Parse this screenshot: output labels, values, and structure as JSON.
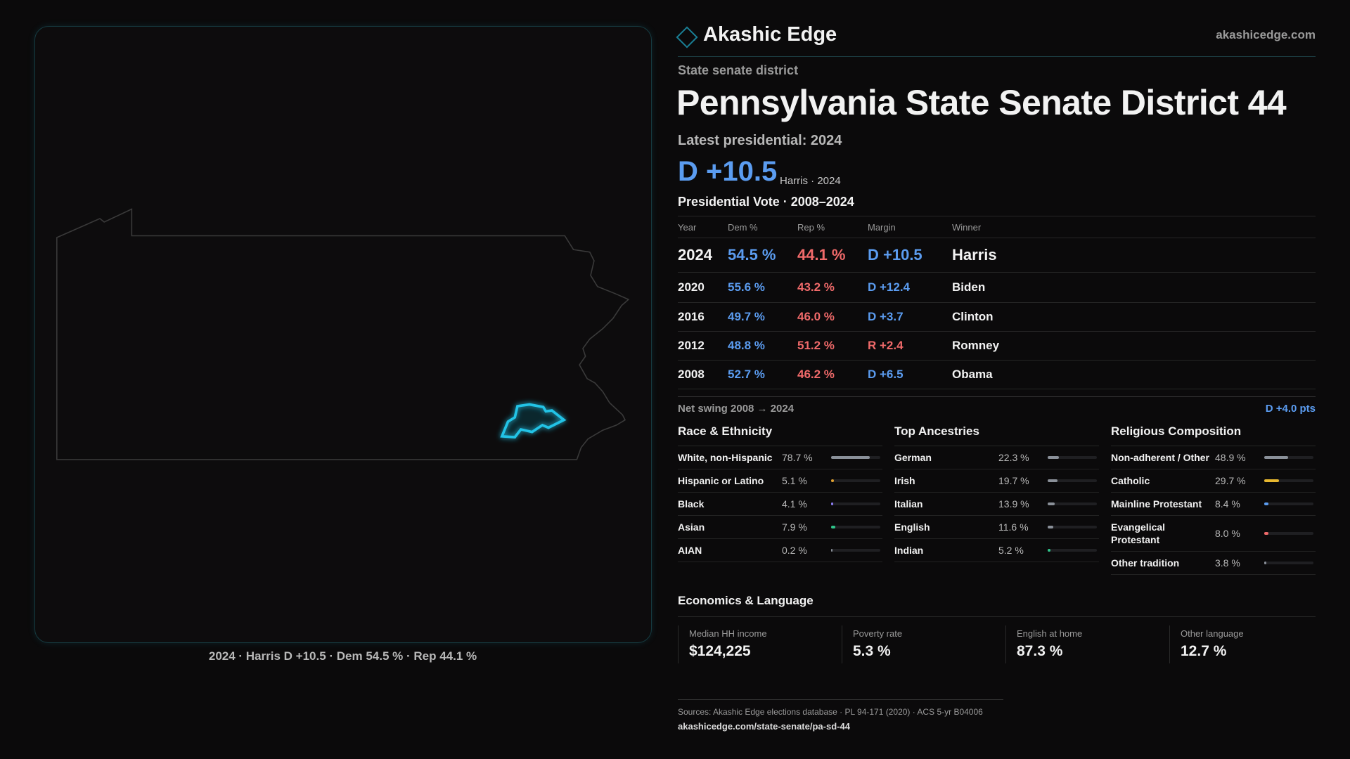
{
  "brand": {
    "name": "Akashic Edge",
    "url": "akashicedge.com"
  },
  "header": {
    "kicker": "State senate district",
    "title": "Pennsylvania State Senate District 44",
    "latest_label": "Latest presidential: 2024",
    "margin": "D +10.5",
    "margin_note": "Harris · 2024"
  },
  "map": {
    "caption": "2024 · Harris D +10.5 · Dem 54.5 % · Rep 44.1 %"
  },
  "vote_table": {
    "title": "Presidential Vote · 2008–2024",
    "columns": [
      "Year",
      "Dem %",
      "Rep %",
      "Margin",
      "Winner"
    ],
    "rows": [
      [
        "2024",
        "54.5 %",
        "44.1 %",
        "D +10.5",
        "Harris"
      ],
      [
        "2020",
        "55.6 %",
        "43.2 %",
        "D +12.4",
        "Biden"
      ],
      [
        "2016",
        "49.7 %",
        "46.0 %",
        "D +3.7",
        "Clinton"
      ],
      [
        "2012",
        "48.8 %",
        "51.2 %",
        "R +2.4",
        "Romney"
      ],
      [
        "2008",
        "52.7 %",
        "46.2 %",
        "D +6.5",
        "Obama"
      ]
    ]
  },
  "swing": {
    "label": "Net swing 2008 → 2024",
    "value": "D +4.0 pts"
  },
  "sections": [
    {
      "title": "Race & Ethnicity",
      "items": [
        {
          "label": "White, non-Hispanic",
          "value": 78.7,
          "value_label": "78.7 %",
          "color": "#8a9099"
        },
        {
          "label": "Hispanic or Latino",
          "value": 5.1,
          "value_label": "5.1 %",
          "color": "#e0a030"
        },
        {
          "label": "Black",
          "value": 4.1,
          "value_label": "4.1 %",
          "color": "#8a7cf0"
        },
        {
          "label": "Asian",
          "value": 7.9,
          "value_label": "7.9 %",
          "color": "#2fc48a"
        },
        {
          "label": "AIAN",
          "value": 0.2,
          "value_label": "0.2 %",
          "color": "#8a9099"
        }
      ]
    },
    {
      "title": "Top Ancestries",
      "items": [
        {
          "label": "German",
          "value": 22.3,
          "value_label": "22.3 %",
          "color": "#8a9099"
        },
        {
          "label": "Irish",
          "value": 19.7,
          "value_label": "19.7 %",
          "color": "#8a9099"
        },
        {
          "label": "Italian",
          "value": 13.9,
          "value_label": "13.9 %",
          "color": "#8a9099"
        },
        {
          "label": "English",
          "value": 11.6,
          "value_label": "11.6 %",
          "color": "#8a9099"
        },
        {
          "label": "Indian",
          "value": 5.2,
          "value_label": "5.2 %",
          "color": "#2fc48a"
        }
      ]
    },
    {
      "title": "Religious Composition",
      "items": [
        {
          "label": "Non-adherent / Other",
          "value": 48.9,
          "value_label": "48.9 %",
          "color": "#8a9099"
        },
        {
          "label": "Catholic",
          "value": 29.7,
          "value_label": "29.7 %",
          "color": "#e8b830"
        },
        {
          "label": "Mainline Protestant",
          "value": 8.4,
          "value_label": "8.4 %",
          "color": "#5b9cf0"
        },
        {
          "label": "Evangelical Protestant",
          "value": 8.0,
          "value_label": "8.0 %",
          "color": "#f06a6a"
        },
        {
          "label": "Other tradition",
          "value": 3.8,
          "value_label": "3.8 %",
          "color": "#8a9099"
        }
      ]
    }
  ],
  "economics": {
    "title": "Economics & Language",
    "cards": [
      {
        "label": "Median HH income",
        "value": "$124,225"
      },
      {
        "label": "Poverty rate",
        "value": "5.3 %"
      },
      {
        "label": "English at home",
        "value": "87.3 %"
      },
      {
        "label": "Other language",
        "value": "12.7 %"
      }
    ]
  },
  "footer": {
    "sources": "Sources: Akashic Edge elections database · PL 94-171 (2020) · ACS 5-yr B04006",
    "url": "akashicedge.com/state-senate/pa-sd-44"
  }
}
